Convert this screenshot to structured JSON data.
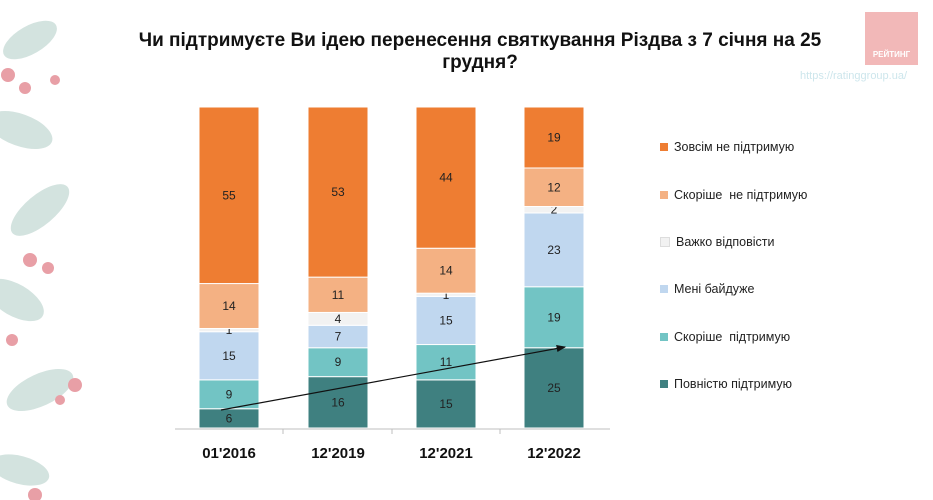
{
  "header": {
    "logo_text": "РЕЙТИНГ",
    "url": "https://ratinggroup.ua/"
  },
  "chart_data": {
    "type": "bar",
    "stacked": true,
    "title": "Чи підтримуєте Ви ідею перенесення святкування Різдва з 7 січня на 25 грудня?",
    "xlabel": "",
    "ylabel": "",
    "ylim": [
      0,
      100
    ],
    "categories": [
      "01'2016",
      "12'2019",
      "12'2021",
      "12'2022"
    ],
    "series": [
      {
        "name": "Повністю підтримую",
        "color": "#3F8080",
        "values": [
          6,
          16,
          15,
          25
        ]
      },
      {
        "name": "Скоріше  підтримую",
        "color": "#72C4C4",
        "values": [
          9,
          9,
          11,
          19
        ]
      },
      {
        "name": "Мені байдуже",
        "color": "#C0D7EF",
        "values": [
          15,
          7,
          15,
          23
        ]
      },
      {
        "name": "Важко відповісти",
        "color": "#F2F2F2",
        "values": [
          1,
          4,
          1,
          2
        ]
      },
      {
        "name": "Скоріше  не підтримую",
        "color": "#F4B183",
        "values": [
          14,
          11,
          14,
          12
        ]
      },
      {
        "name": "Зовсім не підтримую",
        "color": "#EE7D32",
        "values": [
          55,
          53,
          44,
          19
        ]
      }
    ],
    "legend_position": "right",
    "annotations": [
      "arrow showing upward trend of 'Повністю підтримую'"
    ]
  }
}
